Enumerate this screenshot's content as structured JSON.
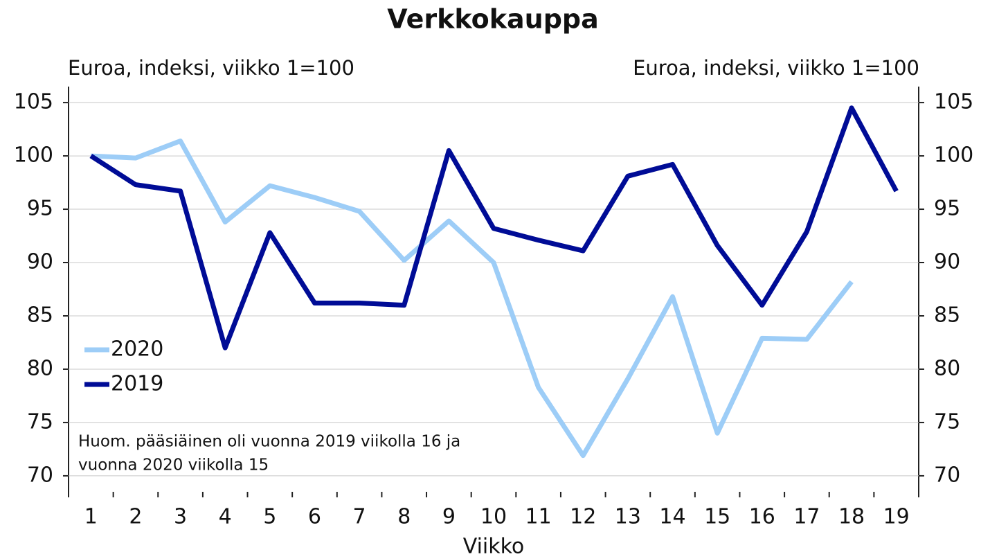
{
  "chart_data": {
    "type": "line",
    "title": "Verkkokauppa",
    "y_axis_label": "Euroa, indeksi, viikko 1=100",
    "y2_axis_label": "Euroa, indeksi, viikko 1=100",
    "x_axis_label": "Viikko",
    "annotation": [
      "Huom. pääsiäinen oli vuonna 2019 viikolla 16 ja",
      "vuonna 2020 viikolla 15"
    ],
    "categories": [
      "1",
      "2",
      "3",
      "4",
      "5",
      "6",
      "7",
      "8",
      "9",
      "10",
      "11",
      "12",
      "13",
      "14",
      "15",
      "16",
      "17",
      "18",
      "19"
    ],
    "series": [
      {
        "name": "2020",
        "color": "#9dcdf7",
        "values": [
          100,
          99.8,
          101.4,
          93.8,
          97.2,
          96.1,
          94.8,
          90.2,
          93.9,
          90.0,
          78.3,
          71.9,
          79.1,
          86.8,
          74.0,
          82.9,
          82.8,
          88.2,
          null
        ]
      },
      {
        "name": "2019",
        "color": "#000c96",
        "values": [
          100,
          97.3,
          96.7,
          82.0,
          92.8,
          86.2,
          86.2,
          86.0,
          100.5,
          93.2,
          92.1,
          91.1,
          98.1,
          99.2,
          91.6,
          86.0,
          92.9,
          104.5,
          96.7
        ]
      }
    ],
    "ylim": [
      68.5,
      106.5
    ],
    "yticks": [
      70,
      75,
      80,
      85,
      90,
      95,
      100,
      105
    ],
    "y2lim": [
      68.5,
      106.5
    ],
    "y2ticks": [
      70,
      75,
      80,
      85,
      90,
      95,
      100,
      105
    ],
    "grid": true,
    "legend": "lower left"
  }
}
